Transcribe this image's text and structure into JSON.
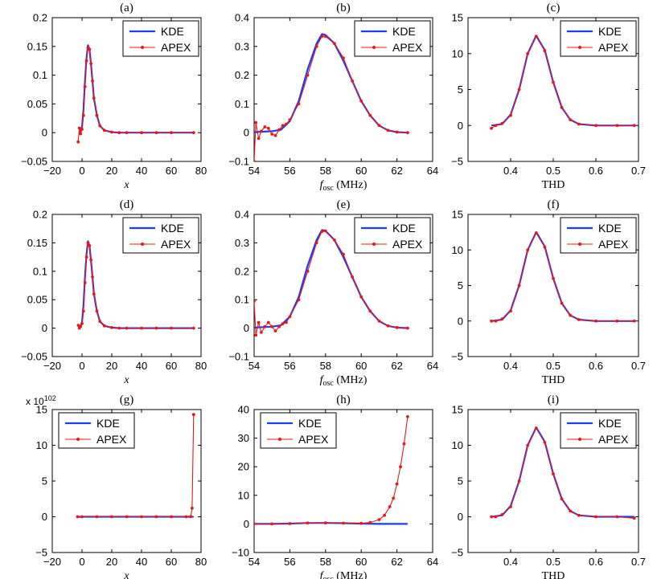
{
  "colors": {
    "kde": "#1a3cff",
    "apex": "#e81818",
    "axis": "#000000"
  },
  "chart_data": [
    {
      "id": "a",
      "title": "(a)",
      "type": "line",
      "xlabel": "x",
      "xlabel_italic": true,
      "xlim": [
        -20,
        80
      ],
      "ylim": [
        -0.05,
        0.2
      ],
      "xticks": [
        -20,
        0,
        20,
        40,
        60,
        80
      ],
      "yticks": [
        -0.05,
        0,
        0.05,
        0.1,
        0.15,
        0.2
      ],
      "xtick_labels": [
        "−20",
        "0",
        "20",
        "40",
        "60",
        "80"
      ],
      "ytick_labels": [
        "−0.05",
        "0",
        "0.05",
        "0.1",
        "0.15",
        "0.2"
      ],
      "legend": [
        "KDE",
        "APEX"
      ],
      "series": [
        {
          "name": "KDE",
          "x": [
            -2,
            -1,
            0,
            1,
            2,
            3,
            4,
            5,
            6,
            7,
            8,
            10,
            12,
            15,
            20,
            25,
            30,
            40,
            50,
            60,
            75
          ],
          "y": [
            0,
            0.002,
            0.01,
            0.04,
            0.09,
            0.13,
            0.152,
            0.145,
            0.12,
            0.09,
            0.06,
            0.03,
            0.012,
            0.004,
            0.001,
            0,
            0,
            0,
            0,
            0,
            0
          ]
        },
        {
          "name": "APEX",
          "x": [
            -2.6,
            -1.8,
            -1,
            0,
            1,
            2,
            3,
            4,
            5,
            6,
            7,
            8,
            10,
            12,
            15,
            20,
            25,
            30,
            40,
            50,
            60,
            75
          ],
          "y": [
            -0.016,
            0.008,
            -0.002,
            0.006,
            0.03,
            0.08,
            0.125,
            0.148,
            0.145,
            0.12,
            0.09,
            0.06,
            0.03,
            0.012,
            0.004,
            0.001,
            0,
            0,
            0,
            0,
            0,
            0
          ]
        }
      ]
    },
    {
      "id": "b",
      "title": "(b)",
      "type": "line",
      "xlabel": "f_osc (MHz)",
      "xlim": [
        54,
        64
      ],
      "ylim": [
        -0.1,
        0.4
      ],
      "xticks": [
        54,
        56,
        58,
        60,
        62,
        64
      ],
      "yticks": [
        -0.1,
        0,
        0.1,
        0.2,
        0.3,
        0.4
      ],
      "xtick_labels": [
        "54",
        "56",
        "58",
        "60",
        "62",
        "64"
      ],
      "ytick_labels": [
        "−0.1",
        "0",
        "0.1",
        "0.2",
        "0.3",
        "0.4"
      ],
      "legend": [
        "KDE",
        "APEX"
      ],
      "series": [
        {
          "name": "KDE",
          "x": [
            54,
            55,
            55.5,
            56,
            56.5,
            57,
            57.5,
            57.8,
            58,
            58.5,
            59,
            59.5,
            60,
            60.5,
            61,
            61.5,
            62,
            62.6
          ],
          "y": [
            0.002,
            0.005,
            0.01,
            0.04,
            0.11,
            0.22,
            0.31,
            0.343,
            0.34,
            0.31,
            0.25,
            0.18,
            0.11,
            0.06,
            0.025,
            0.008,
            0.002,
            0
          ]
        },
        {
          "name": "APEX",
          "x": [
            54,
            54.1,
            54.25,
            54.4,
            54.6,
            54.8,
            55,
            55.2,
            55.4,
            55.6,
            55.8,
            56,
            56.5,
            57,
            57.5,
            57.8,
            58,
            58.5,
            59,
            59.5,
            60,
            60.5,
            61,
            61.5,
            62,
            62.6
          ],
          "y": [
            -0.1,
            0.035,
            -0.02,
            0.005,
            0.02,
            0.015,
            -0.005,
            -0.01,
            0.01,
            0.025,
            0.03,
            0.045,
            0.1,
            0.2,
            0.3,
            0.335,
            0.335,
            0.31,
            0.26,
            0.18,
            0.11,
            0.06,
            0.025,
            0.008,
            0.002,
            0
          ]
        }
      ]
    },
    {
      "id": "c",
      "title": "(c)",
      "type": "line",
      "xlabel": "THD",
      "xlim": [
        0.3,
        0.7
      ],
      "ylim": [
        -5,
        15
      ],
      "xticks": [
        0.3,
        0.4,
        0.5,
        0.6,
        0.7
      ],
      "yticks": [
        -5,
        0,
        5,
        10,
        15
      ],
      "xtick_labels": [
        "",
        "0.4",
        "0.5",
        "0.6",
        "0.7"
      ],
      "ytick_labels": [
        "−5",
        "0",
        "5",
        "10",
        "15"
      ],
      "legend": [
        "KDE",
        "APEX"
      ],
      "series": [
        {
          "name": "KDE",
          "x": [
            0.355,
            0.38,
            0.4,
            0.42,
            0.44,
            0.46,
            0.48,
            0.5,
            0.52,
            0.54,
            0.56,
            0.6,
            0.65,
            0.69
          ],
          "y": [
            0,
            0.2,
            1.5,
            5,
            10,
            12.5,
            10.5,
            6,
            2.5,
            0.8,
            0.2,
            0,
            0,
            0
          ]
        },
        {
          "name": "APEX",
          "x": [
            0.355,
            0.365,
            0.38,
            0.4,
            0.42,
            0.44,
            0.46,
            0.48,
            0.5,
            0.52,
            0.54,
            0.56,
            0.6,
            0.65,
            0.69
          ],
          "y": [
            -0.4,
            0,
            0.3,
            1.4,
            5,
            10,
            12.4,
            10.4,
            6,
            2.5,
            0.8,
            0.2,
            0,
            0,
            0
          ]
        }
      ]
    },
    {
      "id": "d",
      "title": "(d)",
      "type": "line",
      "xlabel": "x",
      "xlabel_italic": true,
      "xlim": [
        -20,
        80
      ],
      "ylim": [
        -0.05,
        0.2
      ],
      "xticks": [
        -20,
        0,
        20,
        40,
        60,
        80
      ],
      "yticks": [
        -0.05,
        0,
        0.05,
        0.1,
        0.15,
        0.2
      ],
      "xtick_labels": [
        "−20",
        "0",
        "20",
        "40",
        "60",
        "80"
      ],
      "ytick_labels": [
        "−0.05",
        "0",
        "0.05",
        "0.1",
        "0.15",
        "0.2"
      ],
      "legend": [
        "KDE",
        "APEX"
      ],
      "series": [
        {
          "name": "KDE",
          "x": [
            -2,
            -1,
            0,
            1,
            2,
            3,
            4,
            5,
            6,
            7,
            8,
            10,
            12,
            15,
            20,
            25,
            30,
            40,
            50,
            60,
            75
          ],
          "y": [
            0,
            0.002,
            0.01,
            0.04,
            0.09,
            0.13,
            0.153,
            0.145,
            0.12,
            0.09,
            0.06,
            0.03,
            0.012,
            0.004,
            0.001,
            0,
            0,
            0,
            0,
            0,
            0
          ]
        },
        {
          "name": "APEX",
          "x": [
            -2.5,
            -1.8,
            -1,
            0,
            1,
            2,
            3,
            4,
            5,
            6,
            7,
            8,
            10,
            12,
            15,
            20,
            25,
            30,
            40,
            50,
            60,
            75
          ],
          "y": [
            0.005,
            0,
            0.003,
            0.008,
            0.03,
            0.08,
            0.125,
            0.15,
            0.145,
            0.12,
            0.09,
            0.06,
            0.03,
            0.012,
            0.004,
            0.001,
            0,
            0,
            0,
            0,
            0,
            0
          ]
        }
      ]
    },
    {
      "id": "e",
      "title": "(e)",
      "type": "line",
      "xlabel": "f_osc (MHz)",
      "xlim": [
        54,
        64
      ],
      "ylim": [
        -0.1,
        0.4
      ],
      "xticks": [
        54,
        56,
        58,
        60,
        62,
        64
      ],
      "yticks": [
        -0.1,
        0,
        0.1,
        0.2,
        0.3,
        0.4
      ],
      "xtick_labels": [
        "54",
        "56",
        "58",
        "60",
        "62",
        "64"
      ],
      "ytick_labels": [
        "−0.1",
        "0",
        "0.1",
        "0.2",
        "0.3",
        "0.4"
      ],
      "legend": [
        "KDE",
        "APEX"
      ],
      "series": [
        {
          "name": "KDE",
          "x": [
            54,
            55,
            55.5,
            56,
            56.5,
            57,
            57.5,
            57.8,
            58,
            58.5,
            59,
            59.5,
            60,
            60.5,
            61,
            61.5,
            62,
            62.6
          ],
          "y": [
            0.002,
            0.005,
            0.01,
            0.04,
            0.11,
            0.22,
            0.31,
            0.345,
            0.342,
            0.31,
            0.25,
            0.18,
            0.11,
            0.06,
            0.025,
            0.008,
            0.002,
            0
          ]
        },
        {
          "name": "APEX",
          "x": [
            54,
            54.1,
            54.25,
            54.4,
            54.6,
            54.8,
            55,
            55.2,
            55.4,
            55.6,
            55.8,
            56,
            56.5,
            57,
            57.5,
            57.8,
            58,
            58.5,
            59,
            59.5,
            60,
            60.5,
            61,
            61.5,
            62,
            62.6
          ],
          "y": [
            0.095,
            -0.025,
            0.02,
            -0.015,
            0.005,
            0.02,
            0.005,
            -0.01,
            0.005,
            0.015,
            0.02,
            0.04,
            0.1,
            0.2,
            0.3,
            0.34,
            0.342,
            0.31,
            0.26,
            0.18,
            0.11,
            0.06,
            0.025,
            0.008,
            0.002,
            0
          ]
        }
      ]
    },
    {
      "id": "f",
      "title": "(f)",
      "type": "line",
      "xlabel": "THD",
      "xlim": [
        0.3,
        0.7
      ],
      "ylim": [
        -5,
        15
      ],
      "xticks": [
        0.3,
        0.4,
        0.5,
        0.6,
        0.7
      ],
      "yticks": [
        -5,
        0,
        5,
        10,
        15
      ],
      "xtick_labels": [
        "",
        "0.4",
        "0.5",
        "0.6",
        "0.7"
      ],
      "ytick_labels": [
        "−5",
        "0",
        "5",
        "10",
        "15"
      ],
      "legend": [
        "KDE",
        "APEX"
      ],
      "series": [
        {
          "name": "KDE",
          "x": [
            0.355,
            0.38,
            0.4,
            0.42,
            0.44,
            0.46,
            0.48,
            0.5,
            0.52,
            0.54,
            0.56,
            0.6,
            0.65,
            0.69
          ],
          "y": [
            0,
            0.2,
            1.5,
            5,
            10,
            12.5,
            10.5,
            6,
            2.5,
            0.8,
            0.2,
            0,
            0,
            0
          ]
        },
        {
          "name": "APEX",
          "x": [
            0.355,
            0.365,
            0.38,
            0.4,
            0.42,
            0.44,
            0.46,
            0.48,
            0.5,
            0.52,
            0.54,
            0.56,
            0.6,
            0.65,
            0.69
          ],
          "y": [
            0,
            0,
            0.3,
            1.4,
            5,
            10,
            12.4,
            10.4,
            6,
            2.5,
            0.8,
            0.2,
            0,
            0,
            0
          ]
        }
      ]
    },
    {
      "id": "g",
      "title": "(g)",
      "type": "line",
      "xlabel": "x",
      "xlabel_italic": true,
      "xlim": [
        -20,
        80
      ],
      "ylim": [
        -5,
        15
      ],
      "xticks": [
        -20,
        0,
        20,
        40,
        60,
        80
      ],
      "yticks": [
        -5,
        0,
        5,
        10,
        15
      ],
      "xtick_labels": [
        "−20",
        "0",
        "20",
        "40",
        "60",
        "80"
      ],
      "ytick_labels": [
        "−5",
        "0",
        "5",
        "10",
        "15"
      ],
      "y_exponent": "x 10^102",
      "y_exponent_base": "x 10",
      "y_exponent_power": "102",
      "legend": [
        "KDE",
        "APEX"
      ],
      "series": [
        {
          "name": "KDE",
          "x": [
            -3,
            0,
            20,
            40,
            60,
            75
          ],
          "y": [
            0,
            0,
            0,
            0,
            0,
            0
          ]
        },
        {
          "name": "APEX",
          "x": [
            -3,
            0,
            10,
            20,
            30,
            40,
            50,
            60,
            70,
            73,
            74,
            75
          ],
          "y": [
            0,
            0,
            0,
            0,
            0,
            0,
            0,
            0,
            0,
            0.02,
            1.2,
            14.3
          ]
        }
      ]
    },
    {
      "id": "h",
      "title": "(h)",
      "type": "line",
      "xlabel": "f_osc (MHz)",
      "xlim": [
        54,
        64
      ],
      "ylim": [
        -10,
        40
      ],
      "xticks": [
        54,
        56,
        58,
        60,
        62,
        64
      ],
      "yticks": [
        -10,
        0,
        10,
        20,
        30,
        40
      ],
      "xtick_labels": [
        "54",
        "56",
        "58",
        "60",
        "62",
        "64"
      ],
      "ytick_labels": [
        "−10",
        "0",
        "10",
        "20",
        "30",
        "40"
      ],
      "legend": [
        "KDE",
        "APEX"
      ],
      "series": [
        {
          "name": "KDE",
          "x": [
            54,
            55,
            56,
            57,
            58,
            59,
            60,
            61,
            62,
            62.6
          ],
          "y": [
            0,
            0,
            0.1,
            0.3,
            0.35,
            0.25,
            0.1,
            0,
            0,
            0
          ]
        },
        {
          "name": "APEX",
          "x": [
            54,
            55,
            56,
            57,
            58,
            59,
            60,
            60.5,
            61,
            61.3,
            61.6,
            61.8,
            62,
            62.2,
            62.4,
            62.6
          ],
          "y": [
            0,
            0,
            0.1,
            0.3,
            0.35,
            0.25,
            0.2,
            0.5,
            1.5,
            3,
            6,
            9,
            14,
            20,
            28,
            37.5
          ]
        }
      ]
    },
    {
      "id": "i",
      "title": "(i)",
      "type": "line",
      "xlabel": "THD",
      "xlim": [
        0.3,
        0.7
      ],
      "ylim": [
        -5,
        15
      ],
      "xticks": [
        0.3,
        0.4,
        0.5,
        0.6,
        0.7
      ],
      "yticks": [
        -5,
        0,
        5,
        10,
        15
      ],
      "xtick_labels": [
        "",
        "0.4",
        "0.5",
        "0.6",
        "0.7"
      ],
      "ytick_labels": [
        "−5",
        "0",
        "5",
        "10",
        "15"
      ],
      "legend": [
        "KDE",
        "APEX"
      ],
      "series": [
        {
          "name": "KDE",
          "x": [
            0.355,
            0.38,
            0.4,
            0.42,
            0.44,
            0.46,
            0.48,
            0.5,
            0.52,
            0.54,
            0.56,
            0.6,
            0.65,
            0.69
          ],
          "y": [
            0,
            0.2,
            1.5,
            5,
            10,
            12.5,
            10.5,
            6,
            2.5,
            0.8,
            0.2,
            0,
            0,
            0
          ]
        },
        {
          "name": "APEX",
          "x": [
            0.355,
            0.365,
            0.38,
            0.4,
            0.42,
            0.44,
            0.46,
            0.48,
            0.5,
            0.52,
            0.54,
            0.56,
            0.6,
            0.65,
            0.69
          ],
          "y": [
            0,
            0,
            0.3,
            1.4,
            5,
            10,
            12.4,
            10.4,
            6,
            2.5,
            0.8,
            0.2,
            0,
            0,
            -0.2
          ]
        }
      ]
    }
  ]
}
